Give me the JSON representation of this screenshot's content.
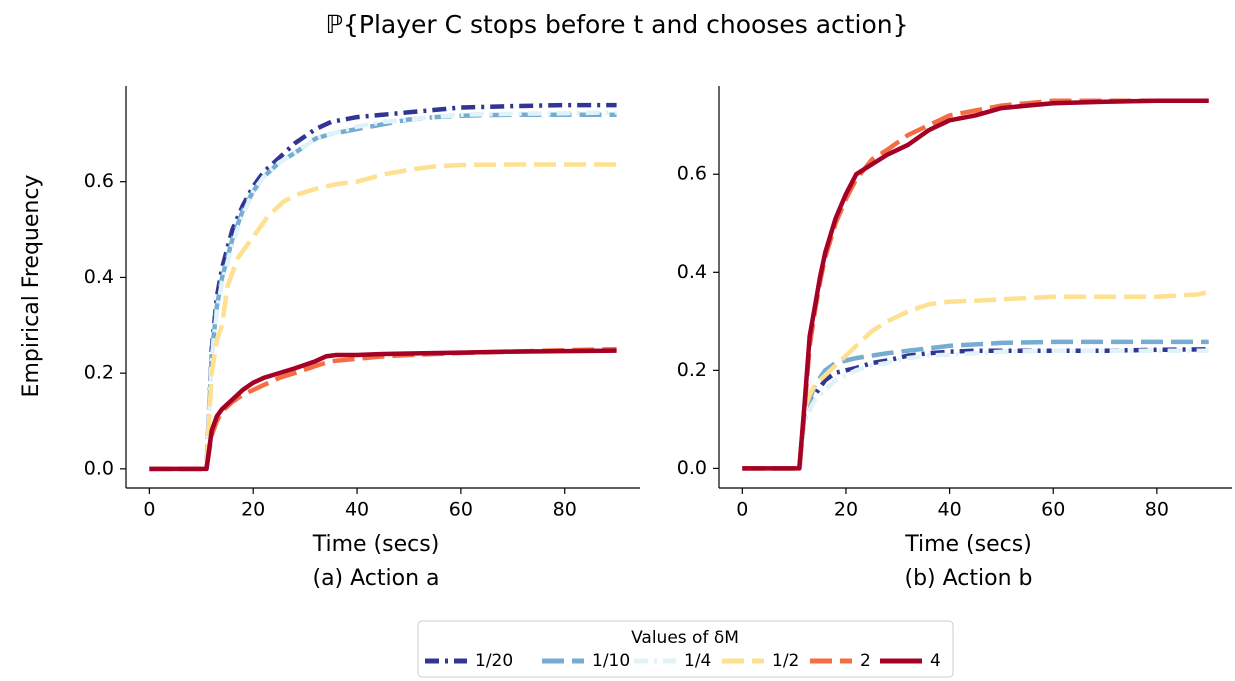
{
  "figure": {
    "title": "ℙ{Player C stops before t and chooses action}"
  },
  "legend": {
    "title": "Values of δM",
    "placement": "bottom-center"
  },
  "series_styles": [
    {
      "name": "1/20",
      "color": "#313695",
      "dash": "dashdot"
    },
    {
      "name": "1/10",
      "color": "#74add1",
      "dash": "dashed"
    },
    {
      "name": "1/4",
      "color": "#e0f3f8",
      "dash": "dashdot"
    },
    {
      "name": "1/2",
      "color": "#fee090",
      "dash": "dashed"
    },
    {
      "name": "2",
      "color": "#f46d43",
      "dash": "dashed"
    },
    {
      "name": "4",
      "color": "#a50026",
      "dash": "solid"
    }
  ],
  "chart_data": [
    {
      "type": "line",
      "subtitle": "(a) Action a",
      "xlabel": "Time (secs)",
      "ylabel": "Empirical Frequency",
      "xlim": [
        -4.5,
        94.5
      ],
      "ylim": [
        -0.04,
        0.8
      ],
      "xticks": [
        "0",
        "20",
        "40",
        "60",
        "80"
      ],
      "yticks": [
        "0.0",
        "0.2",
        "0.4",
        "0.6"
      ],
      "grid": false,
      "series": [
        {
          "name": "1/20",
          "x": [
            0,
            11,
            12,
            13,
            14,
            16,
            18,
            20,
            22,
            25,
            28,
            32,
            35,
            40,
            45,
            50,
            55,
            60,
            70,
            80,
            90
          ],
          "y": [
            0,
            0,
            0.25,
            0.36,
            0.42,
            0.5,
            0.55,
            0.59,
            0.62,
            0.65,
            0.68,
            0.71,
            0.725,
            0.735,
            0.74,
            0.745,
            0.75,
            0.755,
            0.758,
            0.76,
            0.76
          ]
        },
        {
          "name": "1/10",
          "x": [
            0,
            11,
            12,
            13,
            14,
            16,
            18,
            20,
            22,
            25,
            28,
            32,
            35,
            40,
            45,
            50,
            55,
            60,
            70,
            80,
            90
          ],
          "y": [
            0,
            0,
            0.24,
            0.34,
            0.4,
            0.48,
            0.54,
            0.58,
            0.61,
            0.64,
            0.66,
            0.69,
            0.7,
            0.71,
            0.72,
            0.73,
            0.735,
            0.738,
            0.74,
            0.74,
            0.74
          ]
        },
        {
          "name": "1/4",
          "x": [
            0,
            11,
            12,
            13,
            14,
            16,
            18,
            20,
            22,
            25,
            28,
            32,
            35,
            40,
            45,
            50,
            55,
            60,
            70,
            80,
            90
          ],
          "y": [
            0,
            0,
            0.23,
            0.33,
            0.39,
            0.47,
            0.53,
            0.58,
            0.61,
            0.64,
            0.66,
            0.69,
            0.7,
            0.715,
            0.725,
            0.73,
            0.735,
            0.74,
            0.742,
            0.743,
            0.745
          ]
        },
        {
          "name": "1/2",
          "x": [
            0,
            11,
            12,
            13,
            14,
            15,
            17,
            19,
            21,
            23,
            26,
            29,
            32,
            36,
            40,
            45,
            50,
            55,
            60,
            70,
            80,
            90
          ],
          "y": [
            0,
            0,
            0.2,
            0.27,
            0.3,
            0.38,
            0.44,
            0.47,
            0.5,
            0.53,
            0.56,
            0.575,
            0.585,
            0.595,
            0.6,
            0.615,
            0.625,
            0.632,
            0.635,
            0.636,
            0.636,
            0.636
          ]
        },
        {
          "name": "2",
          "x": [
            0,
            11,
            12,
            13,
            14,
            16,
            18,
            20,
            22,
            25,
            28,
            32,
            35,
            40,
            45,
            50,
            60,
            70,
            80,
            90
          ],
          "y": [
            0,
            0,
            0.07,
            0.1,
            0.12,
            0.14,
            0.155,
            0.165,
            0.175,
            0.19,
            0.2,
            0.215,
            0.225,
            0.23,
            0.235,
            0.238,
            0.242,
            0.245,
            0.248,
            0.25
          ]
        },
        {
          "name": "4",
          "x": [
            0,
            11,
            12,
            13,
            14,
            16,
            18,
            20,
            22,
            25,
            28,
            32,
            34,
            36,
            40,
            45,
            50,
            60,
            70,
            80,
            90
          ],
          "y": [
            0,
            0,
            0.08,
            0.11,
            0.125,
            0.145,
            0.165,
            0.18,
            0.19,
            0.2,
            0.21,
            0.225,
            0.235,
            0.238,
            0.238,
            0.24,
            0.241,
            0.243,
            0.245,
            0.246,
            0.247
          ]
        }
      ]
    },
    {
      "type": "line",
      "subtitle": "(b) Action b",
      "xlabel": "Time (secs)",
      "ylabel": "",
      "xlim": [
        -4.5,
        94.5
      ],
      "ylim": [
        -0.04,
        0.78
      ],
      "xticks": [
        "0",
        "20",
        "40",
        "60",
        "80"
      ],
      "yticks": [
        "0.0",
        "0.2",
        "0.4",
        "0.6"
      ],
      "grid": false,
      "series": [
        {
          "name": "1/20",
          "x": [
            0,
            11,
            12,
            13,
            14,
            16,
            18,
            20,
            22,
            25,
            28,
            32,
            36,
            40,
            45,
            50,
            60,
            70,
            80,
            90
          ],
          "y": [
            0,
            0,
            0.1,
            0.12,
            0.15,
            0.18,
            0.195,
            0.2,
            0.205,
            0.215,
            0.22,
            0.23,
            0.235,
            0.238,
            0.24,
            0.24,
            0.24,
            0.24,
            0.242,
            0.243
          ]
        },
        {
          "name": "1/10",
          "x": [
            0,
            11,
            12,
            13,
            14,
            16,
            18,
            20,
            22,
            25,
            28,
            32,
            36,
            40,
            45,
            50,
            60,
            70,
            80,
            90
          ],
          "y": [
            0,
            0,
            0.11,
            0.14,
            0.17,
            0.2,
            0.215,
            0.22,
            0.225,
            0.23,
            0.235,
            0.24,
            0.245,
            0.25,
            0.253,
            0.256,
            0.258,
            0.258,
            0.258,
            0.258
          ]
        },
        {
          "name": "1/4",
          "x": [
            0,
            11,
            12,
            13,
            14,
            16,
            18,
            20,
            22,
            25,
            28,
            32,
            36,
            40,
            45,
            50,
            60,
            70,
            80,
            90
          ],
          "y": [
            0,
            0,
            0.1,
            0.12,
            0.14,
            0.16,
            0.18,
            0.19,
            0.2,
            0.21,
            0.215,
            0.225,
            0.23,
            0.232,
            0.235,
            0.238,
            0.24,
            0.24,
            0.24,
            0.24
          ]
        },
        {
          "name": "1/2",
          "x": [
            0,
            11,
            12,
            13,
            14,
            16,
            18,
            20,
            22,
            25,
            28,
            32,
            36,
            40,
            45,
            50,
            60,
            70,
            80,
            88,
            90
          ],
          "y": [
            0,
            0,
            0.12,
            0.15,
            0.17,
            0.19,
            0.21,
            0.23,
            0.25,
            0.28,
            0.3,
            0.32,
            0.335,
            0.34,
            0.342,
            0.345,
            0.35,
            0.35,
            0.35,
            0.355,
            0.36
          ]
        },
        {
          "name": "2",
          "x": [
            0,
            11,
            12,
            13,
            14,
            15,
            16,
            18,
            20,
            22,
            25,
            28,
            32,
            36,
            40,
            45,
            50,
            55,
            60,
            70,
            80,
            90
          ],
          "y": [
            0,
            0,
            0.12,
            0.25,
            0.32,
            0.38,
            0.43,
            0.5,
            0.55,
            0.59,
            0.63,
            0.65,
            0.68,
            0.7,
            0.72,
            0.73,
            0.74,
            0.745,
            0.75,
            0.75,
            0.75,
            0.75
          ]
        },
        {
          "name": "4",
          "x": [
            0,
            11,
            12,
            13,
            14,
            15,
            16,
            18,
            20,
            22,
            25,
            28,
            32,
            36,
            40,
            45,
            50,
            55,
            60,
            70,
            80,
            90
          ],
          "y": [
            0,
            0,
            0.13,
            0.27,
            0.33,
            0.39,
            0.44,
            0.51,
            0.56,
            0.6,
            0.62,
            0.64,
            0.66,
            0.69,
            0.71,
            0.72,
            0.735,
            0.74,
            0.745,
            0.748,
            0.75,
            0.75
          ]
        }
      ]
    }
  ]
}
